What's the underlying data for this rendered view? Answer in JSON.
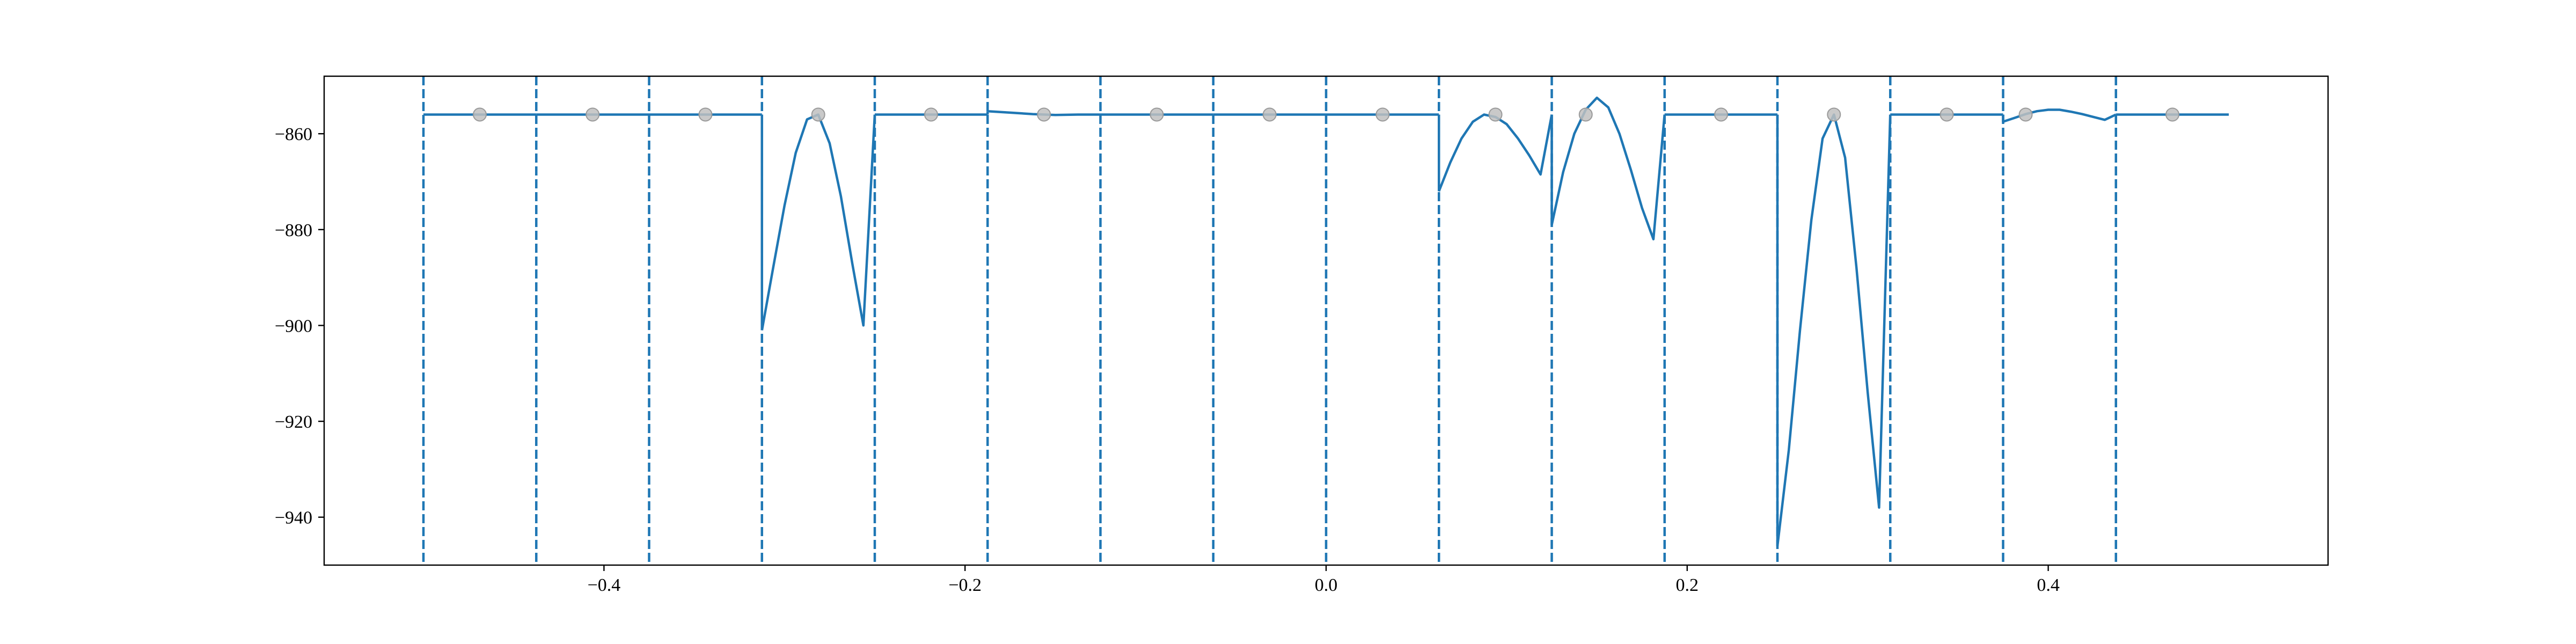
{
  "chart_data": {
    "type": "line",
    "title": "",
    "xlabel": "",
    "ylabel": "",
    "xlim": [
      -0.555,
      0.555
    ],
    "ylim": [
      -950,
      -848
    ],
    "grid": false,
    "x_ticks": [
      -0.4,
      -0.2,
      0.0,
      0.2,
      0.4
    ],
    "x_tick_labels": [
      "−0.4",
      "−0.2",
      "0.0",
      "0.2",
      "0.4"
    ],
    "y_ticks": [
      -940,
      -920,
      -900,
      -880,
      -860
    ],
    "y_tick_labels": [
      "−940",
      "−920",
      "−900",
      "−880",
      "−860"
    ],
    "line_color": "#1f77b4",
    "marker_color": "#bfbfbf",
    "boundaries": [
      -0.5,
      -0.4375,
      -0.375,
      -0.3125,
      -0.25,
      -0.1875,
      -0.125,
      -0.0625,
      0.0,
      0.0625,
      0.125,
      0.1875,
      0.25,
      0.3125,
      0.375,
      0.4375
    ],
    "series": [
      {
        "segment": [
          -0.5,
          -0.4375
        ],
        "x": [
          -0.5,
          -0.4375
        ],
        "y": [
          -856,
          -856
        ]
      },
      {
        "segment": [
          -0.4375,
          -0.375
        ],
        "x": [
          -0.4375,
          -0.375
        ],
        "y": [
          -856,
          -856
        ]
      },
      {
        "segment": [
          -0.375,
          -0.3125
        ],
        "x": [
          -0.375,
          -0.3125
        ],
        "y": [
          -856,
          -856
        ]
      },
      {
        "segment": [
          -0.3125,
          -0.25
        ],
        "x": [
          -0.3125,
          -0.3063,
          -0.3,
          -0.2938,
          -0.2875,
          -0.2813,
          -0.275,
          -0.2688,
          -0.2625,
          -0.2563,
          -0.25
        ],
        "y": [
          -901,
          -888,
          -875,
          -864,
          -857,
          -856,
          -862,
          -873,
          -887,
          -900,
          -856
        ]
      },
      {
        "segment": [
          -0.25,
          -0.1875
        ],
        "x": [
          -0.25,
          -0.1875
        ],
        "y": [
          -856,
          -856
        ]
      },
      {
        "segment": [
          -0.1875,
          -0.125
        ],
        "x": [
          -0.1875,
          -0.175,
          -0.1625,
          -0.15,
          -0.1375,
          -0.125
        ],
        "y": [
          -855.3,
          -855.6,
          -855.9,
          -856.1,
          -856.0,
          -856.0
        ]
      },
      {
        "segment": [
          -0.125,
          -0.0625
        ],
        "x": [
          -0.125,
          -0.0625
        ],
        "y": [
          -856,
          -856
        ]
      },
      {
        "segment": [
          -0.0625,
          0.0
        ],
        "x": [
          -0.0625,
          0.0
        ],
        "y": [
          -856,
          -856
        ]
      },
      {
        "segment": [
          0.0,
          0.0625
        ],
        "x": [
          0.0,
          0.0625
        ],
        "y": [
          -856,
          -856
        ]
      },
      {
        "segment": [
          0.0625,
          0.125
        ],
        "x": [
          0.0625,
          0.0688,
          0.075,
          0.0813,
          0.0875,
          0.0938,
          0.1,
          0.1063,
          0.1125,
          0.1188,
          0.125
        ],
        "y": [
          -872,
          -866,
          -861,
          -857.5,
          -856,
          -856.5,
          -858,
          -861,
          -864.5,
          -868.5,
          -856
        ]
      },
      {
        "segment": [
          0.125,
          0.1875
        ],
        "x": [
          0.125,
          0.1313,
          0.1375,
          0.1438,
          0.15,
          0.1563,
          0.1625,
          0.1688,
          0.175,
          0.1813,
          0.1875
        ],
        "y": [
          -879,
          -868,
          -860,
          -855,
          -852.5,
          -854.5,
          -860,
          -867.5,
          -875.5,
          -882,
          -856
        ]
      },
      {
        "segment": [
          0.1875,
          0.25
        ],
        "x": [
          0.1875,
          0.25
        ],
        "y": [
          -856,
          -856
        ]
      },
      {
        "segment": [
          0.25,
          0.3125
        ],
        "x": [
          0.25,
          0.2563,
          0.2625,
          0.2688,
          0.275,
          0.2813,
          0.2875,
          0.2938,
          0.3,
          0.3063,
          0.3125
        ],
        "y": [
          -946,
          -926,
          -901,
          -878,
          -861,
          -856,
          -865,
          -888,
          -914,
          -938,
          -856
        ]
      },
      {
        "segment": [
          0.3125,
          0.375
        ],
        "x": [
          0.3125,
          0.375
        ],
        "y": [
          -856,
          -856
        ]
      },
      {
        "segment": [
          0.375,
          0.4375
        ],
        "x": [
          0.375,
          0.3813,
          0.3875,
          0.3938,
          0.4,
          0.4063,
          0.4125,
          0.4188,
          0.425,
          0.4313,
          0.4375
        ],
        "y": [
          -857.5,
          -856.7,
          -855.9,
          -855.3,
          -855.0,
          -855.0,
          -855.4,
          -855.9,
          -856.5,
          -857.1,
          -856
        ]
      },
      {
        "segment": [
          0.4375,
          0.5
        ],
        "x": [
          0.4375,
          0.5
        ],
        "y": [
          -856,
          -856
        ]
      }
    ],
    "markers": {
      "x": [
        -0.4688,
        -0.4063,
        -0.3438,
        -0.2813,
        -0.2188,
        -0.1563,
        -0.0938,
        -0.0313,
        0.0313,
        0.0938,
        0.1438,
        0.2188,
        0.2813,
        0.3438,
        0.3875,
        0.4688
      ],
      "y": [
        -856,
        -856,
        -856,
        -856,
        -856,
        -856,
        -856,
        -856,
        -856,
        -856,
        -856,
        -856,
        -856,
        -856,
        -856,
        -856
      ]
    }
  }
}
